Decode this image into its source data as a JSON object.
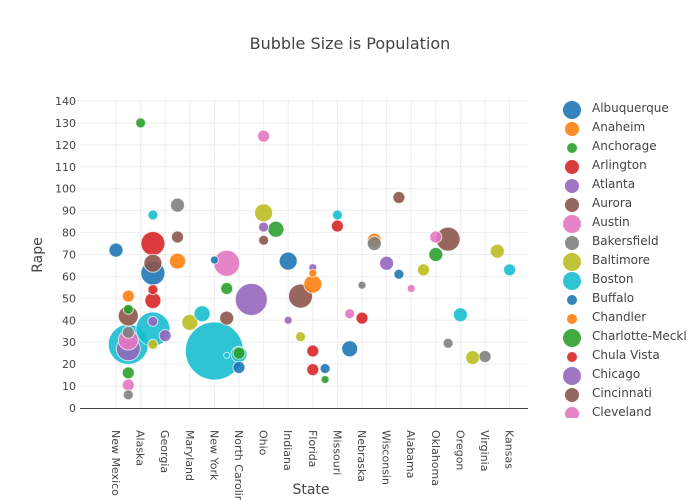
{
  "chart_data": {
    "type": "scatter",
    "title": "Bubble Size is Population",
    "xlabel": "State",
    "ylabel": "Rape",
    "ylim": [
      0,
      140
    ],
    "yticks": [
      0,
      10,
      20,
      30,
      40,
      50,
      60,
      70,
      80,
      90,
      100,
      110,
      120,
      130,
      140
    ],
    "x_category_count": 34,
    "xtick_labels": [
      {
        "index": 0,
        "label": "New Mexico"
      },
      {
        "index": 2,
        "label": "Alaska"
      },
      {
        "index": 4,
        "label": "Georgia"
      },
      {
        "index": 6,
        "label": "Maryland"
      },
      {
        "index": 8,
        "label": "New York"
      },
      {
        "index": 10,
        "label": "North Carolina"
      },
      {
        "index": 12,
        "label": "Ohio"
      },
      {
        "index": 14,
        "label": "Indiana"
      },
      {
        "index": 16,
        "label": "Florida"
      },
      {
        "index": 18,
        "label": "Missouri"
      },
      {
        "index": 20,
        "label": "Nebraska"
      },
      {
        "index": 22,
        "label": "Wisconsin"
      },
      {
        "index": 24,
        "label": "Alabama"
      },
      {
        "index": 26,
        "label": "Oklahoma"
      },
      {
        "index": 28,
        "label": "Oregon"
      },
      {
        "index": 30,
        "label": "Virginia"
      },
      {
        "index": 32,
        "label": "Kansas"
      }
    ],
    "grid": true,
    "legend_position": "right",
    "legend": [
      {
        "name": "Albuquerque",
        "color": "#1f77b4",
        "size": 3
      },
      {
        "name": "Anaheim",
        "color": "#ff7f0e",
        "size": 2
      },
      {
        "name": "Anchorage",
        "color": "#2ca02c",
        "size": 1
      },
      {
        "name": "Arlington",
        "color": "#d62728",
        "size": 2
      },
      {
        "name": "Atlanta",
        "color": "#9467bd",
        "size": 2
      },
      {
        "name": "Aurora",
        "color": "#8c564b",
        "size": 2
      },
      {
        "name": "Austin",
        "color": "#e377c2",
        "size": 3
      },
      {
        "name": "Bakersfield",
        "color": "#7f7f7f",
        "size": 2
      },
      {
        "name": "Baltimore",
        "color": "#bcbd22",
        "size": 3
      },
      {
        "name": "Boston",
        "color": "#17becf",
        "size": 3
      },
      {
        "name": "Buffalo",
        "color": "#1f77b4",
        "size": 1
      },
      {
        "name": "Chandler",
        "color": "#ff7f0e",
        "size": 1
      },
      {
        "name": "Charlotte-Meckl",
        "color": "#2ca02c",
        "size": 3
      },
      {
        "name": "Chula Vista",
        "color": "#d62728",
        "size": 1
      },
      {
        "name": "Chicago",
        "color": "#9467bd",
        "size": 3
      },
      {
        "name": "Cincinnati",
        "color": "#8c564b",
        "size": 2
      },
      {
        "name": "Cleveland",
        "color": "#e377c2",
        "size": 2
      }
    ],
    "points": [
      {
        "x": 0,
        "y": 72,
        "r": 7,
        "color": "#1f77b4"
      },
      {
        "x": 2,
        "y": 130,
        "r": 5,
        "color": "#2ca02c"
      },
      {
        "x": 12,
        "y": 124,
        "r": 6,
        "color": "#e377c2"
      },
      {
        "x": 5,
        "y": 92.5,
        "r": 7,
        "color": "#7f7f7f"
      },
      {
        "x": 3,
        "y": 88,
        "r": 5,
        "color": "#17becf"
      },
      {
        "x": 5,
        "y": 78,
        "r": 6,
        "color": "#8c564b"
      },
      {
        "x": 3,
        "y": 75,
        "r": 12,
        "color": "#d62728"
      },
      {
        "x": 5,
        "y": 67,
        "r": 8,
        "color": "#ff7f0e"
      },
      {
        "x": 3,
        "y": 61.5,
        "r": 12,
        "color": "#1f77b4"
      },
      {
        "x": 3,
        "y": 66,
        "r": 9,
        "color": "#8c564b"
      },
      {
        "x": 3,
        "y": 54,
        "r": 5,
        "color": "#d62728"
      },
      {
        "x": 3,
        "y": 49,
        "r": 8,
        "color": "#d62728"
      },
      {
        "x": 1,
        "y": 51,
        "r": 6,
        "color": "#ff7f0e"
      },
      {
        "x": 1,
        "y": 42,
        "r": 10,
        "color": "#8c564b"
      },
      {
        "x": 1,
        "y": 45,
        "r": 5,
        "color": "#2ca02c"
      },
      {
        "x": 3,
        "y": 36,
        "r": 17,
        "color": "#17becf"
      },
      {
        "x": 3,
        "y": 39.5,
        "r": 5,
        "color": "#9467bd"
      },
      {
        "x": 4,
        "y": 33,
        "r": 6,
        "color": "#9467bd"
      },
      {
        "x": 3,
        "y": 29,
        "r": 5,
        "color": "#bcbd22"
      },
      {
        "x": 1,
        "y": 29,
        "r": 20,
        "color": "#17becf"
      },
      {
        "x": 1,
        "y": 27,
        "r": 12,
        "color": "#9467bd"
      },
      {
        "x": 1,
        "y": 31,
        "r": 10,
        "color": "#e377c2"
      },
      {
        "x": 1,
        "y": 34.5,
        "r": 6,
        "color": "#7f7f7f"
      },
      {
        "x": 1,
        "y": 16,
        "r": 6,
        "color": "#2ca02c"
      },
      {
        "x": 1,
        "y": 10.5,
        "r": 6,
        "color": "#e377c2"
      },
      {
        "x": 1,
        "y": 6,
        "r": 5,
        "color": "#7f7f7f"
      },
      {
        "x": 6,
        "y": 39,
        "r": 8,
        "color": "#bcbd22"
      },
      {
        "x": 7,
        "y": 43,
        "r": 8,
        "color": "#17becf"
      },
      {
        "x": 8,
        "y": 26,
        "r": 29,
        "color": "#17becf"
      },
      {
        "x": 10,
        "y": 25,
        "r": 6,
        "color": "#2ca02c"
      },
      {
        "x": 10,
        "y": 24.5,
        "r": 8,
        "color": "#17becf"
      },
      {
        "x": 9,
        "y": 24,
        "r": 3,
        "color": "#17becf"
      },
      {
        "x": 10,
        "y": 18.5,
        "r": 6,
        "color": "#1f77b4"
      },
      {
        "x": 9,
        "y": 41,
        "r": 7,
        "color": "#8c564b"
      },
      {
        "x": 9,
        "y": 54.5,
        "r": 6,
        "color": "#2ca02c"
      },
      {
        "x": 8,
        "y": 67.5,
        "r": 4,
        "color": "#1f77b4"
      },
      {
        "x": 9,
        "y": 66,
        "r": 13,
        "color": "#e377c2"
      },
      {
        "x": 11,
        "y": 49.5,
        "r": 16,
        "color": "#9467bd"
      },
      {
        "x": 12,
        "y": 89,
        "r": 9,
        "color": "#bcbd22"
      },
      {
        "x": 12,
        "y": 82.5,
        "r": 5,
        "color": "#9467bd"
      },
      {
        "x": 12,
        "y": 76.5,
        "r": 5,
        "color": "#8c564b"
      },
      {
        "x": 13,
        "y": 81.5,
        "r": 8,
        "color": "#2ca02c"
      },
      {
        "x": 14,
        "y": 67,
        "r": 9,
        "color": "#1f77b4"
      },
      {
        "x": 14,
        "y": 40,
        "r": 4,
        "color": "#9467bd"
      },
      {
        "x": 15,
        "y": 32.5,
        "r": 5,
        "color": "#bcbd22"
      },
      {
        "x": 16,
        "y": 64,
        "r": 4,
        "color": "#9467bd"
      },
      {
        "x": 16,
        "y": 61.5,
        "r": 4,
        "color": "#ff7f0e"
      },
      {
        "x": 16,
        "y": 56.5,
        "r": 9,
        "color": "#ff7f0e"
      },
      {
        "x": 15,
        "y": 51,
        "r": 12,
        "color": "#8c564b"
      },
      {
        "x": 16,
        "y": 26,
        "r": 6,
        "color": "#d62728"
      },
      {
        "x": 16,
        "y": 17.5,
        "r": 6,
        "color": "#d62728"
      },
      {
        "x": 17,
        "y": 18,
        "r": 5,
        "color": "#1f77b4"
      },
      {
        "x": 17,
        "y": 13,
        "r": 4,
        "color": "#2ca02c"
      },
      {
        "x": 18,
        "y": 88,
        "r": 5,
        "color": "#17becf"
      },
      {
        "x": 18,
        "y": 83,
        "r": 6,
        "color": "#d62728"
      },
      {
        "x": 19,
        "y": 43,
        "r": 5,
        "color": "#e377c2"
      },
      {
        "x": 19,
        "y": 27,
        "r": 8,
        "color": "#1f77b4"
      },
      {
        "x": 20,
        "y": 41,
        "r": 6,
        "color": "#d62728"
      },
      {
        "x": 20,
        "y": 56,
        "r": 4,
        "color": "#7f7f7f"
      },
      {
        "x": 21,
        "y": 76.5,
        "r": 7,
        "color": "#ff7f0e"
      },
      {
        "x": 21,
        "y": 75,
        "r": 7,
        "color": "#7f7f7f"
      },
      {
        "x": 22,
        "y": 66,
        "r": 7,
        "color": "#9467bd"
      },
      {
        "x": 23,
        "y": 61,
        "r": 5,
        "color": "#1f77b4"
      },
      {
        "x": 23,
        "y": 96,
        "r": 6,
        "color": "#8c564b"
      },
      {
        "x": 24,
        "y": 54.5,
        "r": 4,
        "color": "#e377c2"
      },
      {
        "x": 25,
        "y": 63,
        "r": 6,
        "color": "#bcbd22"
      },
      {
        "x": 26,
        "y": 70,
        "r": 7,
        "color": "#2ca02c"
      },
      {
        "x": 27,
        "y": 77,
        "r": 12,
        "color": "#8c564b"
      },
      {
        "x": 26,
        "y": 78,
        "r": 6,
        "color": "#e377c2"
      },
      {
        "x": 28,
        "y": 42.5,
        "r": 7,
        "color": "#17becf"
      },
      {
        "x": 27,
        "y": 29.5,
        "r": 5,
        "color": "#7f7f7f"
      },
      {
        "x": 29,
        "y": 23,
        "r": 7,
        "color": "#bcbd22"
      },
      {
        "x": 30,
        "y": 23.5,
        "r": 6,
        "color": "#7f7f7f"
      },
      {
        "x": 31,
        "y": 71.5,
        "r": 7,
        "color": "#bcbd22"
      },
      {
        "x": 32,
        "y": 63,
        "r": 6,
        "color": "#17becf"
      }
    ]
  }
}
